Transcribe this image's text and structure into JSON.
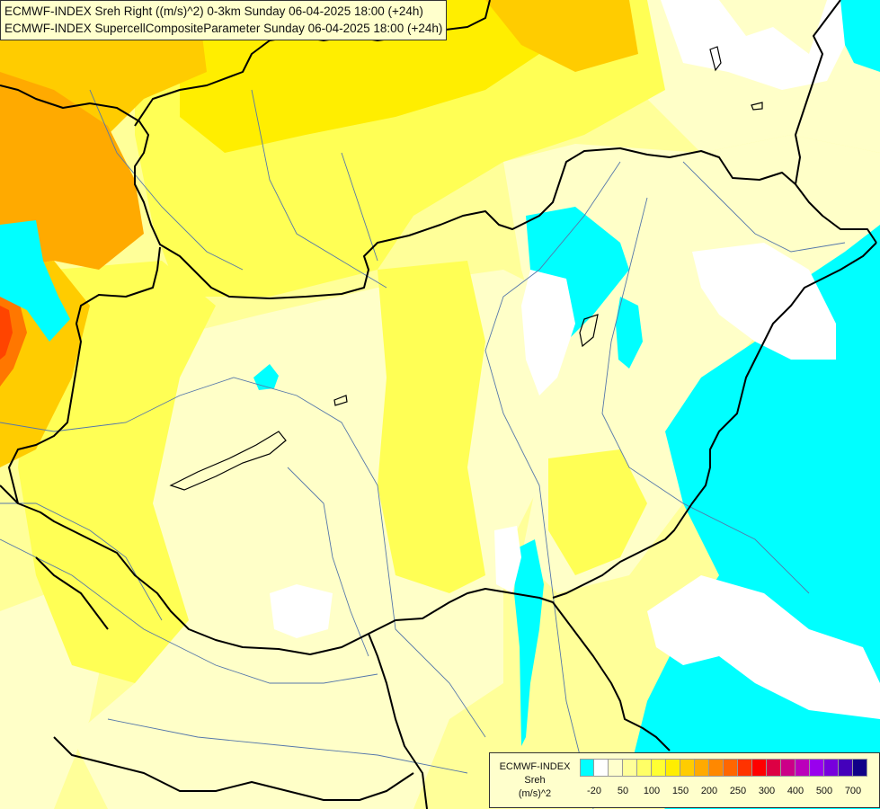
{
  "titles": {
    "line1": "ECMWF-INDEX Sreh Right ((m/s)^2) 0-3km Sunday 06-04-2025 18:00 (+24h)",
    "line2": "ECMWF-INDEX SupercellCompositeParameter Sunday 06-04-2025 18:00 (+24h)"
  },
  "legend": {
    "source": "ECMWF-INDEX",
    "parameter": "Sreh",
    "unit": "(m/s)^2",
    "swatch_colors": [
      "#00ffff",
      "#ffffff",
      "#ffffcc",
      "#ffff99",
      "#ffff66",
      "#ffff33",
      "#ffee00",
      "#ffcc00",
      "#ffaa00",
      "#ff8800",
      "#ff6600",
      "#ff3300",
      "#ff0000",
      "#dd0044",
      "#cc0088",
      "#bb00bb",
      "#9900ee",
      "#7700dd",
      "#4400bb",
      "#110088"
    ],
    "tick_labels": [
      "-20",
      "50",
      "100",
      "150",
      "200",
      "250",
      "300",
      "400",
      "500",
      "700"
    ]
  },
  "colors": {
    "pale_yellow": "#ffffc8",
    "light_yellow": "#ffff99",
    "yellow": "#ffff55",
    "bright_yellow": "#ffee00",
    "gold": "#ffcc00",
    "orange": "#ffaa00",
    "dark_orange": "#ff7700",
    "red_orange": "#ff4400",
    "cyan": "#00ffff",
    "white": "#ffffff",
    "border": "#000000",
    "river": "#5577aa"
  }
}
